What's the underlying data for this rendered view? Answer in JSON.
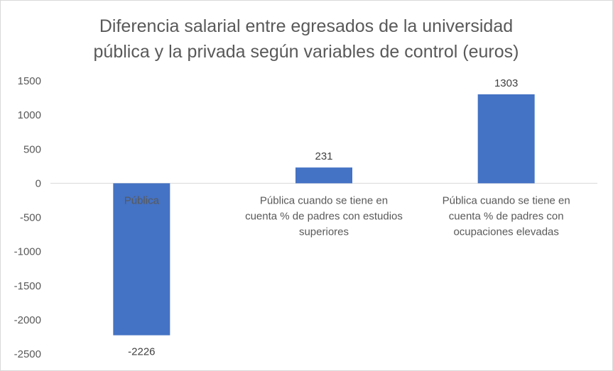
{
  "chart_data": {
    "type": "bar",
    "title_lines": [
      "Diferencia salarial entre egresados de la universidad",
      "pública y la privada según variables de control (euros)"
    ],
    "categories": [
      [
        "Pública"
      ],
      [
        "Pública cuando se tiene en",
        "cuenta % de padres con estudios",
        "superiores"
      ],
      [
        "Pública cuando se tiene en",
        "cuenta % de padres con",
        "ocupaciones elevadas"
      ]
    ],
    "values": [
      -2226,
      231,
      1303
    ],
    "data_labels": [
      "-2226",
      "231",
      "1303"
    ],
    "y_ticks": [
      1500,
      1000,
      500,
      0,
      -500,
      -1000,
      -1500,
      -2000,
      -2500
    ],
    "ylim": [
      -2500,
      1500
    ],
    "bar_color": "#4472c4",
    "grid": false
  }
}
